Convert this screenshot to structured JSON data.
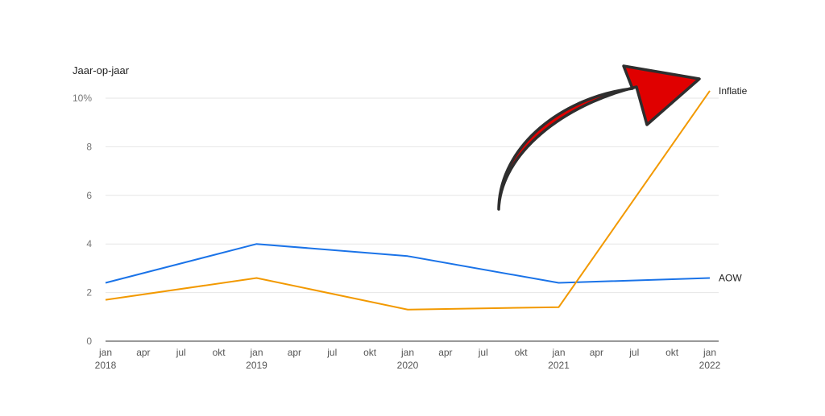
{
  "chart_data": {
    "type": "line",
    "ylabel": "Jaar-op-jaar",
    "ylim": [
      0,
      10
    ],
    "yticks": [
      "0",
      "2",
      "4",
      "6",
      "8",
      "10%"
    ],
    "x": [
      "2018-01",
      "2019-01",
      "2020-01",
      "2021-01",
      "2022-01"
    ],
    "xticks": [
      {
        "month": "jan",
        "year": "2018"
      },
      {
        "month": "apr",
        "year": ""
      },
      {
        "month": "jul",
        "year": ""
      },
      {
        "month": "okt",
        "year": ""
      },
      {
        "month": "jan",
        "year": "2019"
      },
      {
        "month": "apr",
        "year": ""
      },
      {
        "month": "jul",
        "year": ""
      },
      {
        "month": "okt",
        "year": ""
      },
      {
        "month": "jan",
        "year": "2020"
      },
      {
        "month": "apr",
        "year": ""
      },
      {
        "month": "jul",
        "year": ""
      },
      {
        "month": "okt",
        "year": ""
      },
      {
        "month": "jan",
        "year": "2021"
      },
      {
        "month": "apr",
        "year": ""
      },
      {
        "month": "jul",
        "year": ""
      },
      {
        "month": "okt",
        "year": ""
      },
      {
        "month": "jan",
        "year": "2022"
      }
    ],
    "series": [
      {
        "name": "AOW",
        "color": "#1a73e8",
        "values": [
          2.4,
          4.0,
          3.5,
          2.4,
          2.6
        ]
      },
      {
        "name": "Inflatie",
        "color": "#f29900",
        "values": [
          1.7,
          2.6,
          1.3,
          1.4,
          10.3
        ]
      }
    ],
    "grid": true,
    "legend": "inline-right",
    "annotation": {
      "shape": "curved-arrow",
      "direction": "up-right",
      "color": "#e00000"
    }
  }
}
